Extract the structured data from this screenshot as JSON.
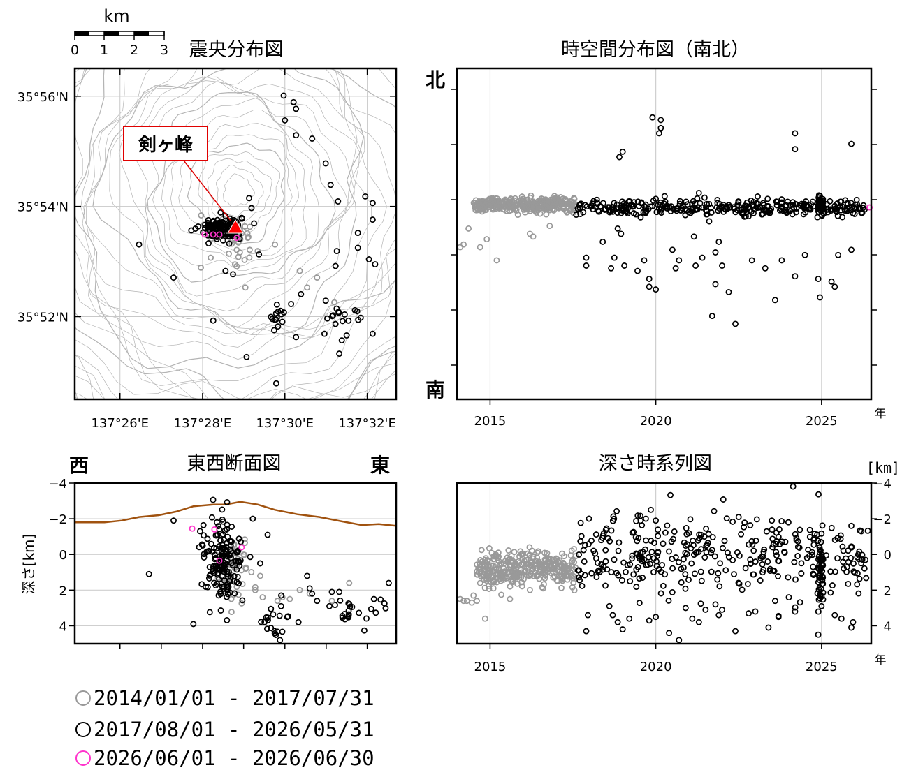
{
  "colors": {
    "period1": "#999999",
    "period2": "#000000",
    "period3": "#ff33cc",
    "topography": "#a0520f",
    "contour": "#b4b4b4",
    "peak_marker": "#ff0000",
    "callout_border": "#e00000"
  },
  "scale_bar": {
    "unit": "km",
    "ticks": [
      "0",
      "1",
      "2",
      "3"
    ]
  },
  "peak_label": "剣ヶ峰",
  "legend": [
    {
      "label": "2014/01/01 - 2017/07/31",
      "color": "#999999"
    },
    {
      "label": "2017/08/01 - 2026/05/31",
      "color": "#000000"
    },
    {
      "label": "2026/06/01 - 2026/06/30",
      "color": "#ff33cc"
    }
  ],
  "chart_data": [
    {
      "id": "epicenter",
      "type": "scatter",
      "title": "震央分布図",
      "xlim": [
        137.415,
        137.545
      ],
      "ylim": [
        35.8417,
        35.9417
      ],
      "x_ticks": [
        "137°26'E",
        "137°28'E",
        "137°30'E",
        "137°32'E"
      ],
      "x_tick_values": [
        137.4333,
        137.4667,
        137.5,
        137.5333
      ],
      "y_ticks": [
        "35°52'N",
        "35°54'N",
        "35°56'N"
      ],
      "y_tick_values": [
        35.8667,
        35.9,
        35.9333
      ],
      "peak": {
        "name": "剣ヶ峰",
        "lon": 137.481,
        "lat": 35.893
      },
      "clusters": [
        {
          "period": 1,
          "n": 55,
          "cx": 137.477,
          "cy": 35.893,
          "sx": 0.0045,
          "sy": 0.0022
        },
        {
          "period": 1,
          "n": 10,
          "cx": 137.482,
          "cy": 35.885,
          "sx": 0.002,
          "sy": 0.002
        },
        {
          "period": 2,
          "n": 140,
          "cx": 137.474,
          "cy": 35.8935,
          "sx": 0.0042,
          "sy": 0.0018
        },
        {
          "period": 2,
          "n": 14,
          "cx": 137.497,
          "cy": 35.866,
          "sx": 0.0018,
          "sy": 0.0016
        },
        {
          "period": 2,
          "n": 8,
          "cx": 137.522,
          "cy": 35.867,
          "sx": 0.0025,
          "sy": 0.0016
        },
        {
          "period": 2,
          "n": 6,
          "cx": 137.5285,
          "cy": 35.8665,
          "sx": 0.002,
          "sy": 0.0015
        }
      ],
      "points_period1": [
        [
          137.496,
          35.8885
        ],
        [
          137.485,
          35.8905
        ],
        [
          137.489,
          35.8865
        ],
        [
          137.506,
          35.8805
        ],
        [
          137.513,
          35.8785
        ],
        [
          137.509,
          35.8755
        ],
        [
          137.466,
          35.8815
        ],
        [
          137.47,
          35.8845
        ],
        [
          137.484,
          35.8755
        ],
        [
          137.52,
          35.871
        ]
      ],
      "points_period2": [
        [
          137.441,
          35.8885
        ],
        [
          137.455,
          35.8785
        ],
        [
          137.476,
          35.8805
        ],
        [
          137.479,
          35.8795
        ],
        [
          137.4995,
          35.9335
        ],
        [
          137.5035,
          35.9315
        ],
        [
          137.5045,
          35.9295
        ],
        [
          137.5,
          35.926
        ],
        [
          137.5045,
          35.9215
        ],
        [
          137.511,
          35.9205
        ],
        [
          137.5165,
          35.913
        ],
        [
          137.5215,
          35.9015
        ],
        [
          137.5185,
          35.9065
        ],
        [
          137.5325,
          35.903
        ],
        [
          137.5355,
          35.901
        ],
        [
          137.5295,
          35.892
        ],
        [
          137.5355,
          35.896
        ],
        [
          137.521,
          35.8865
        ],
        [
          137.5295,
          35.8875
        ],
        [
          137.534,
          35.884
        ],
        [
          137.5365,
          35.8825
        ],
        [
          137.5205,
          35.882
        ],
        [
          137.5165,
          35.8715
        ],
        [
          137.5065,
          35.8735
        ],
        [
          137.5025,
          35.8705
        ],
        [
          137.4895,
          35.8855
        ],
        [
          137.4865,
          35.8995
        ],
        [
          137.4855,
          35.9025
        ],
        [
          137.516,
          35.8615
        ],
        [
          137.523,
          35.8595
        ],
        [
          137.5355,
          35.8615
        ],
        [
          137.5045,
          35.8605
        ],
        [
          137.471,
          35.8655
        ],
        [
          137.4845,
          35.8545
        ],
        [
          137.4965,
          35.8465
        ],
        [
          137.522,
          35.8555
        ],
        [
          137.525,
          35.861
        ]
      ],
      "points_period3": [
        [
          137.4675,
          35.8915
        ],
        [
          137.471,
          35.8915
        ],
        [
          137.4735,
          35.8915
        ],
        [
          137.4805,
          35.8905
        ]
      ]
    },
    {
      "id": "space-time-ns",
      "type": "scatter",
      "title": "時空間分布図（南北）",
      "north_label": "北",
      "south_label": "南",
      "x_unit": "年",
      "xlim": [
        2014.0,
        2026.5
      ],
      "ylim": [
        35.82,
        35.945
      ],
      "x_ticks": [
        "2015",
        "2020",
        "2025"
      ],
      "x_tick_values": [
        2015,
        2020,
        2025
      ],
      "clusters": [
        {
          "period": 1,
          "x0": 2014.5,
          "x1": 2017.58,
          "n": 330,
          "cy": 35.8935,
          "sy": 0.0014
        },
        {
          "period": 2,
          "x0": 2017.58,
          "x1": 2026.4,
          "n": 330,
          "cy": 35.8925,
          "sy": 0.0014
        },
        {
          "period": 2,
          "x0": 2024.9,
          "x1": 2025.05,
          "n": 40,
          "cy": 35.8935,
          "sy": 0.002
        }
      ],
      "points_period1": [
        [
          2014.1,
          35.8775
        ],
        [
          2014.2,
          35.8785
        ],
        [
          2014.35,
          35.8845
        ],
        [
          2014.7,
          35.8775
        ],
        [
          2014.9,
          35.8805
        ],
        [
          2015.2,
          35.8725
        ],
        [
          2016.2,
          35.8825
        ],
        [
          2016.3,
          35.8815
        ],
        [
          2016.8,
          35.8855
        ]
      ],
      "points_period2": [
        [
          2018.9,
          35.9115
        ],
        [
          2019.9,
          35.9265
        ],
        [
          2020.15,
          35.9255
        ],
        [
          2020.15,
          35.9225
        ],
        [
          2020.1,
          35.9205
        ],
        [
          2019.0,
          35.9135
        ],
        [
          2024.2,
          35.9205
        ],
        [
          2024.2,
          35.9145
        ],
        [
          2025.9,
          35.9165
        ],
        [
          2017.9,
          35.8705
        ],
        [
          2017.9,
          35.8735
        ],
        [
          2018.4,
          35.8795
        ],
        [
          2018.65,
          35.8695
        ],
        [
          2018.75,
          35.8735
        ],
        [
          2019.05,
          35.8705
        ],
        [
          2019.45,
          35.8685
        ],
        [
          2019.8,
          35.8655
        ],
        [
          2019.8,
          35.8625
        ],
        [
          2020.0,
          35.8615
        ],
        [
          2020.5,
          35.8765
        ],
        [
          2020.7,
          35.8725
        ],
        [
          2021.2,
          35.8705
        ],
        [
          2021.4,
          35.8735
        ],
        [
          2021.8,
          35.8755
        ],
        [
          2021.8,
          35.8635
        ],
        [
          2022.0,
          35.8705
        ],
        [
          2022.2,
          35.8605
        ],
        [
          2022.4,
          35.8485
        ],
        [
          2022.9,
          35.8725
        ],
        [
          2023.3,
          35.8695
        ],
        [
          2023.6,
          35.8575
        ],
        [
          2023.8,
          35.8725
        ],
        [
          2024.2,
          35.8665
        ],
        [
          2024.5,
          35.8745
        ],
        [
          2024.9,
          35.8655
        ],
        [
          2024.95,
          35.8585
        ],
        [
          2025.3,
          35.8645
        ],
        [
          2025.4,
          35.8625
        ],
        [
          2025.5,
          35.8745
        ],
        [
          2025.9,
          35.8765
        ],
        [
          2026.2,
          35.8905
        ],
        [
          2021.9,
          35.8795
        ],
        [
          2021.7,
          35.8515
        ],
        [
          2020.6,
          35.8695
        ],
        [
          2018.95,
          35.8825
        ],
        [
          2018.85,
          35.8845
        ],
        [
          2019.65,
          35.8725
        ],
        [
          2021.15,
          35.8815
        ],
        [
          2023.95,
          35.8905
        ]
      ],
      "points_period3": [
        [
          2026.45,
          35.8925
        ],
        [
          2026.48,
          35.8915
        ]
      ]
    },
    {
      "id": "ew-section",
      "type": "scatter",
      "title": "東西断面図",
      "west_label": "西",
      "east_label": "東",
      "ylabel": "深さ[km]",
      "xlim": [
        137.415,
        137.545
      ],
      "ylim": [
        5,
        -4
      ],
      "y_ticks": [
        "−4",
        "−2",
        "0",
        "2",
        "4"
      ],
      "y_tick_values": [
        -4,
        -2,
        0,
        2,
        4
      ],
      "x_tick_values": [
        137.4333,
        137.45,
        137.4667,
        137.4833,
        137.5,
        137.5167,
        137.5333
      ],
      "topography": {
        "x": [
          137.415,
          137.427,
          137.434,
          137.441,
          137.449,
          137.456,
          137.463,
          137.471,
          137.476,
          137.482,
          137.489,
          137.496,
          137.505,
          137.514,
          137.523,
          137.531,
          137.538,
          137.545
        ],
        "y": [
          -1.8,
          -1.8,
          -1.9,
          -2.1,
          -2.2,
          -2.4,
          -2.7,
          -2.8,
          -2.8,
          -2.95,
          -2.8,
          -2.5,
          -2.25,
          -2.1,
          -1.85,
          -1.65,
          -1.7,
          -1.6
        ]
      },
      "clusters": [
        {
          "period": 1,
          "n": 60,
          "cx": 137.479,
          "cy": 0.9,
          "sx": 0.004,
          "sy": 0.9
        },
        {
          "period": 2,
          "n": 160,
          "cx": 137.475,
          "cy": 0.3,
          "sx": 0.0042,
          "sy": 1.2
        },
        {
          "period": 2,
          "n": 18,
          "cx": 137.494,
          "cy": 3.7,
          "sx": 0.0025,
          "sy": 0.35
        },
        {
          "period": 2,
          "n": 22,
          "cx": 137.528,
          "cy": 3.2,
          "sx": 0.006,
          "sy": 0.45
        }
      ],
      "points_period1": [
        [
          137.488,
          2.0
        ],
        [
          137.491,
          2.4
        ],
        [
          137.497,
          2.6
        ],
        [
          137.499,
          2.4
        ],
        [
          137.502,
          2.5
        ],
        [
          137.506,
          2.0
        ],
        [
          137.51,
          2.2
        ],
        [
          137.49,
          1.2
        ],
        [
          137.519,
          2.6
        ],
        [
          137.526,
          1.6
        ]
      ],
      "points_period2": [
        [
          137.445,
          1.1
        ],
        [
          137.455,
          -1.9
        ],
        [
          137.463,
          3.9
        ],
        [
          137.487,
          -2.0
        ],
        [
          137.493,
          -1.1
        ],
        [
          137.49,
          0.5
        ],
        [
          137.509,
          1.2
        ],
        [
          137.51,
          1.9
        ],
        [
          137.511,
          2.2
        ],
        [
          137.513,
          2.6
        ],
        [
          137.518,
          2.9
        ],
        [
          137.519,
          2.1
        ],
        [
          137.522,
          2.1
        ],
        [
          137.536,
          2.5
        ],
        [
          137.542,
          1.6
        ],
        [
          137.545,
          2.8
        ],
        [
          137.498,
          4.8
        ],
        [
          137.5055,
          3.8
        ],
        [
          137.4985,
          2.3
        ]
      ],
      "points_period3": [
        [
          137.4625,
          -1.45
        ],
        [
          137.4715,
          -1.4
        ],
        [
          137.4735,
          0.35
        ],
        [
          137.4825,
          -0.4
        ]
      ]
    },
    {
      "id": "depth-time",
      "type": "scatter",
      "title": "深さ時系列図",
      "y_unit": "[km]",
      "x_unit": "年",
      "xlim": [
        2014.0,
        2026.5
      ],
      "ylim": [
        5,
        -4
      ],
      "x_ticks": [
        "2015",
        "2020",
        "2025"
      ],
      "x_tick_values": [
        2015,
        2020,
        2025
      ],
      "y_ticks": [
        "−4",
        "−2",
        "0",
        "2",
        "4"
      ],
      "y_tick_values": [
        -4,
        -2,
        0,
        2,
        4
      ],
      "clusters": [
        {
          "period": 1,
          "x0": 2014.6,
          "x1": 2017.58,
          "n": 330,
          "cy": 0.8,
          "sy": 0.5
        },
        {
          "period": 2,
          "x0": 2017.58,
          "x1": 2026.4,
          "n": 330,
          "cy": 0.0,
          "sy": 1.1
        },
        {
          "period": 2,
          "x0": 2024.9,
          "x1": 2025.05,
          "n": 50,
          "cy": 0.6,
          "sy": 1.0
        }
      ],
      "points_period1": [
        [
          2014.1,
          2.5
        ],
        [
          2014.2,
          2.6
        ],
        [
          2014.3,
          2.6
        ],
        [
          2014.5,
          2.3
        ],
        [
          2014.6,
          2.6
        ],
        [
          2014.7,
          1.6
        ],
        [
          2014.85,
          3.6
        ],
        [
          2015.6,
          2.5
        ],
        [
          2016.2,
          2.0
        ],
        [
          2016.6,
          1.9
        ],
        [
          2014.45,
          2.7
        ],
        [
          2015.1,
          1.9
        ]
      ],
      "points_period2": [
        [
          2017.9,
          4.3
        ],
        [
          2017.95,
          3.4
        ],
        [
          2018.6,
          2.9
        ],
        [
          2018.7,
          3.4
        ],
        [
          2018.85,
          3.8
        ],
        [
          2019.0,
          4.2
        ],
        [
          2019.2,
          3.6
        ],
        [
          2019.8,
          3.7
        ],
        [
          2020.0,
          3.5
        ],
        [
          2020.4,
          4.4
        ],
        [
          2020.7,
          4.8
        ],
        [
          2020.9,
          3.0
        ],
        [
          2021.1,
          3.6
        ],
        [
          2021.3,
          3.8
        ],
        [
          2021.5,
          3.1
        ],
        [
          2021.8,
          2.8
        ],
        [
          2021.9,
          3.4
        ],
        [
          2022.0,
          3.1
        ],
        [
          2022.4,
          4.3
        ],
        [
          2022.8,
          3.3
        ],
        [
          2023.0,
          3.2
        ],
        [
          2023.4,
          4.1
        ],
        [
          2023.6,
          2.6
        ],
        [
          2023.7,
          3.5
        ],
        [
          2024.2,
          3.2
        ],
        [
          2024.9,
          4.5
        ],
        [
          2025.0,
          2.9
        ],
        [
          2025.4,
          3.4
        ],
        [
          2025.6,
          3.6
        ],
        [
          2025.9,
          4.1
        ],
        [
          2025.95,
          3.8
        ],
        [
          2019.85,
          -2.5
        ],
        [
          2019.7,
          -2.0
        ],
        [
          2020.0,
          -1.9
        ],
        [
          2023.5,
          -1.9
        ],
        [
          2024.0,
          -1.8
        ],
        [
          2022.5,
          -2.1
        ],
        [
          2025.9,
          -1.6
        ],
        [
          2026.2,
          -1.3
        ]
      ],
      "points_period3": [
        [
          2026.47,
          -1.4
        ],
        [
          2026.5,
          0.3
        ]
      ]
    }
  ]
}
